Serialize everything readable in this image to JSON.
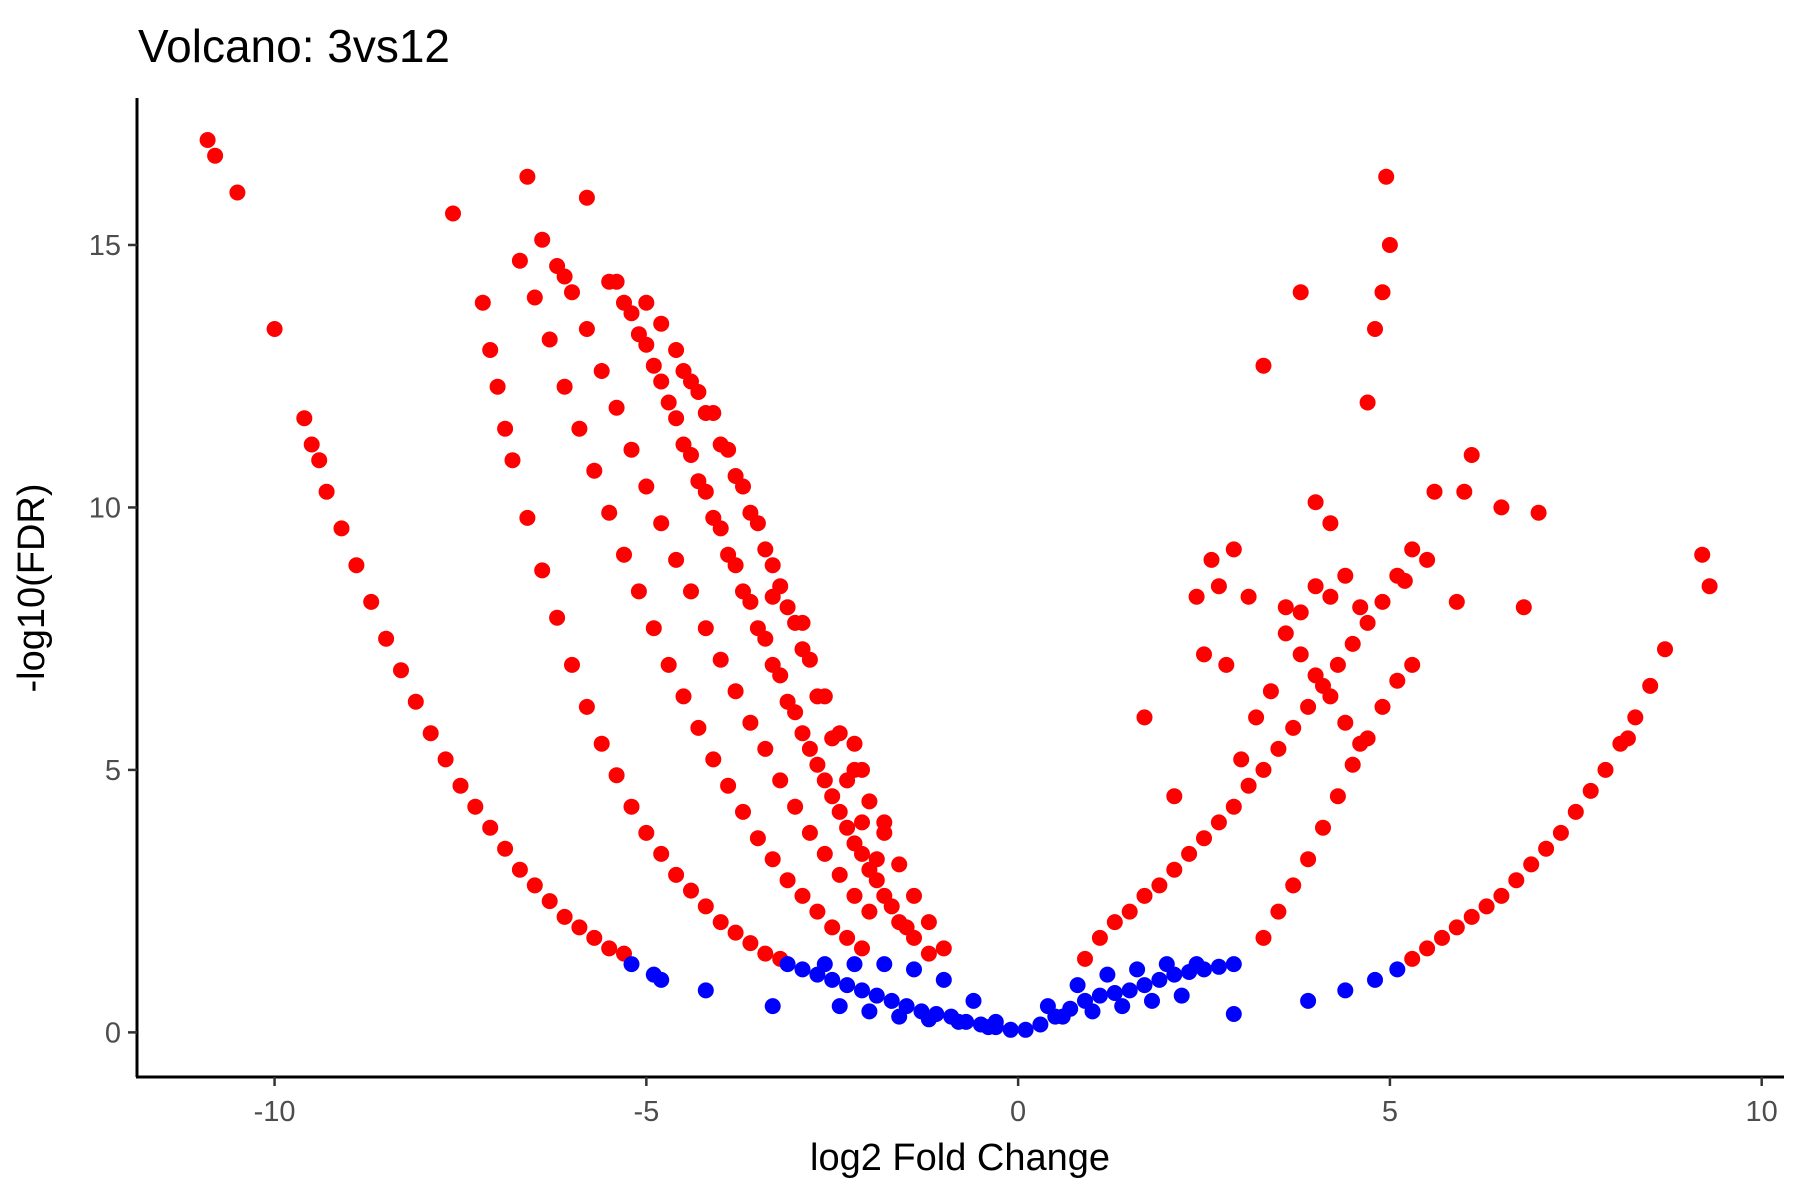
{
  "chart_data": {
    "type": "scatter",
    "title": "Volcano: 3vs12",
    "xlabel": "log2 Fold Change",
    "ylabel": "-log10(FDR)",
    "xlim": [
      -11.85,
      10.3
    ],
    "ylim": [
      -0.85,
      17.8
    ],
    "x_ticks": [
      -10,
      -5,
      0,
      5,
      10
    ],
    "x_tick_labels": [
      "-10",
      "-5",
      "0",
      "5",
      "10"
    ],
    "y_ticks": [
      0,
      5,
      10,
      15
    ],
    "y_tick_labels": [
      "0",
      "5",
      "10",
      "15"
    ],
    "grid": false,
    "legend": "none",
    "colors": {
      "significant": "#ff0000",
      "not_significant": "#0000ff"
    },
    "significance_threshold_neglog10_fdr": 1.3,
    "series": [
      {
        "color": "#ff0000",
        "x": [
          -10.9,
          -10.8,
          -10.5,
          -10.0,
          -9.6,
          -9.5,
          -9.4,
          -9.3,
          -9.1,
          -8.9,
          -8.7,
          -8.5,
          -8.3,
          -8.1,
          -7.9,
          -7.7,
          -7.5,
          -7.3,
          -7.1,
          -6.9,
          -6.7,
          -6.5,
          -6.3,
          -6.1,
          -5.9,
          -5.7,
          -5.5,
          -5.3,
          -7.6,
          -7.2,
          -7.1,
          -7.0,
          -6.9,
          -6.8,
          -6.6,
          -6.4,
          -6.2,
          -6.0,
          -5.8,
          -5.6,
          -5.4,
          -5.2,
          -5.0,
          -4.8,
          -4.6,
          -4.4,
          -4.2,
          -4.0,
          -3.8,
          -3.6,
          -3.4,
          -3.2,
          -6.7,
          -6.5,
          -6.3,
          -6.1,
          -5.9,
          -5.7,
          -5.5,
          -5.3,
          -5.1,
          -4.9,
          -4.7,
          -4.5,
          -4.3,
          -4.1,
          -3.9,
          -3.7,
          -3.5,
          -3.3,
          -3.1,
          -2.9,
          -2.7,
          -2.5,
          -2.3,
          -2.1,
          -6.6,
          -6.4,
          -6.2,
          -6.1,
          -6.0,
          -5.8,
          -5.6,
          -5.4,
          -5.2,
          -5.0,
          -4.8,
          -4.6,
          -4.4,
          -4.2,
          -4.0,
          -3.8,
          -3.6,
          -3.4,
          -3.2,
          -3.0,
          -2.8,
          -2.6,
          -2.4,
          -2.2,
          -2.0,
          -5.8,
          -5.5,
          -5.3,
          -5.1,
          -4.9,
          -4.7,
          -4.5,
          -4.3,
          -4.1,
          -3.9,
          -3.7,
          -3.5,
          -3.3,
          -3.1,
          -2.9,
          -2.7,
          -2.5,
          -2.3,
          -2.1,
          -1.9,
          -1.7,
          -1.5,
          -5.4,
          -5.2,
          -5.0,
          -4.8,
          -4.6,
          -4.4,
          -4.2,
          -4.0,
          -3.8,
          -3.6,
          -3.4,
          -3.2,
          -3.0,
          -2.8,
          -2.6,
          -2.4,
          -2.2,
          -2.0,
          -1.8,
          -1.6,
          -1.4,
          -1.2,
          -5.0,
          -4.8,
          -4.6,
          -4.4,
          -4.2,
          -4.0,
          -3.8,
          -3.6,
          -3.4,
          -3.2,
          -3.0,
          -2.8,
          -2.6,
          -2.4,
          -2.2,
          -2.0,
          -1.8,
          -1.6,
          -1.4,
          -1.2,
          -1.0,
          -4.5,
          -4.3,
          -4.1,
          -3.9,
          -3.7,
          -3.5,
          -3.3,
          -3.1,
          -2.9,
          -2.7,
          -2.5,
          -2.3,
          -2.1,
          -1.9,
          -3.3,
          -2.9,
          -2.2,
          -2.1,
          -1.8,
          0.9,
          1.1,
          1.3,
          1.5,
          1.7,
          1.9,
          2.1,
          2.3,
          2.5,
          2.7,
          2.9,
          3.1,
          3.3,
          3.5,
          3.7,
          3.9,
          4.1,
          4.3,
          4.5,
          4.7,
          4.9,
          5.1,
          5.3,
          3.3,
          3.5,
          3.7,
          3.9,
          4.1,
          4.3,
          4.5,
          4.7,
          4.9,
          5.1,
          5.3,
          1.7,
          2.1,
          2.4,
          2.6,
          2.7,
          2.8,
          3.0,
          3.2,
          3.4,
          3.6,
          3.8,
          4.0,
          4.2,
          4.4,
          4.6,
          2.5,
          2.9,
          3.1,
          3.6,
          3.8,
          4.0,
          4.2,
          4.4,
          4.6,
          5.2,
          5.5,
          5.9,
          3.3,
          3.8,
          4.0,
          4.2,
          4.7,
          4.8,
          4.9,
          4.95,
          5.0,
          5.6,
          6.0,
          6.1,
          6.5,
          7.0,
          6.8,
          5.3,
          5.5,
          5.7,
          5.9,
          6.1,
          6.3,
          6.5,
          6.7,
          6.9,
          7.1,
          7.3,
          7.5,
          7.7,
          7.9,
          8.1,
          8.3,
          8.5,
          8.7,
          9.2,
          9.3,
          8.2
        ],
        "y": [
          17.0,
          16.7,
          16.0,
          13.4,
          11.7,
          11.2,
          10.9,
          10.3,
          9.6,
          8.9,
          8.2,
          7.5,
          6.9,
          6.3,
          5.7,
          5.2,
          4.7,
          4.3,
          3.9,
          3.5,
          3.1,
          2.8,
          2.5,
          2.2,
          2.0,
          1.8,
          1.6,
          1.5,
          15.6,
          13.9,
          13.0,
          12.3,
          11.5,
          10.9,
          9.8,
          8.8,
          7.9,
          7.0,
          6.2,
          5.5,
          4.9,
          4.3,
          3.8,
          3.4,
          3.0,
          2.7,
          2.4,
          2.1,
          1.9,
          1.7,
          1.5,
          1.4,
          14.7,
          14.0,
          13.2,
          12.3,
          11.5,
          10.7,
          9.9,
          9.1,
          8.4,
          7.7,
          7.0,
          6.4,
          5.8,
          5.2,
          4.7,
          4.2,
          3.7,
          3.3,
          2.9,
          2.6,
          2.3,
          2.0,
          1.8,
          1.6,
          16.3,
          15.1,
          14.6,
          14.4,
          14.1,
          13.4,
          12.6,
          11.9,
          11.1,
          10.4,
          9.7,
          9.0,
          8.4,
          7.7,
          7.1,
          6.5,
          5.9,
          5.4,
          4.8,
          4.3,
          3.8,
          3.4,
          3.0,
          2.6,
          2.3,
          15.9,
          14.3,
          13.9,
          13.3,
          12.7,
          12.0,
          11.2,
          10.5,
          9.8,
          9.1,
          8.4,
          7.7,
          7.0,
          6.3,
          5.7,
          5.1,
          4.5,
          3.9,
          3.4,
          2.9,
          2.4,
          2.0,
          14.3,
          13.7,
          13.1,
          12.4,
          11.7,
          11.0,
          10.3,
          9.6,
          8.9,
          8.2,
          7.5,
          6.8,
          6.1,
          5.4,
          4.8,
          4.2,
          3.6,
          3.1,
          2.6,
          2.1,
          1.8,
          1.5,
          13.9,
          13.5,
          13.0,
          12.4,
          11.8,
          11.2,
          10.6,
          9.9,
          9.2,
          8.5,
          7.8,
          7.1,
          6.4,
          5.7,
          5.0,
          4.4,
          3.8,
          3.2,
          2.6,
          2.1,
          1.6,
          12.6,
          12.2,
          11.8,
          11.1,
          10.4,
          9.7,
          8.9,
          8.1,
          7.3,
          6.4,
          5.6,
          4.8,
          4.0,
          3.3,
          8.3,
          7.8,
          5.5,
          5.0,
          4.0,
          1.4,
          1.8,
          2.1,
          2.3,
          2.6,
          2.8,
          3.1,
          3.4,
          3.7,
          4.0,
          4.3,
          4.7,
          5.0,
          5.4,
          5.8,
          6.2,
          6.6,
          7.0,
          7.4,
          7.8,
          8.2,
          8.7,
          9.2,
          1.8,
          2.3,
          2.8,
          3.3,
          3.9,
          4.5,
          5.1,
          5.6,
          6.2,
          6.7,
          7.0,
          6.0,
          4.5,
          8.3,
          9.0,
          8.5,
          7.0,
          5.2,
          6.0,
          6.5,
          7.6,
          7.2,
          6.8,
          6.4,
          5.9,
          5.5,
          7.2,
          9.2,
          8.3,
          8.1,
          8.0,
          8.5,
          8.3,
          8.7,
          8.1,
          8.6,
          9.0,
          8.2,
          12.7,
          14.1,
          10.1,
          9.7,
          12.0,
          13.4,
          14.1,
          16.3,
          15.0,
          10.3,
          10.3,
          11.0,
          10.0,
          9.9,
          8.1,
          1.4,
          1.6,
          1.8,
          2.0,
          2.2,
          2.4,
          2.6,
          2.9,
          3.2,
          3.5,
          3.8,
          4.2,
          4.6,
          5.0,
          5.5,
          6.0,
          6.6,
          7.3,
          9.1,
          8.5,
          5.6
        ]
      },
      {
        "color": "#0000ff",
        "x": [
          -5.2,
          -4.9,
          -4.8,
          -4.2,
          -3.3,
          -3.1,
          -2.9,
          -2.7,
          -2.5,
          -2.3,
          -2.1,
          -1.9,
          -1.7,
          -1.5,
          -1.3,
          -1.1,
          -0.9,
          -0.7,
          -0.5,
          -0.3,
          -0.1,
          -2.6,
          -2.2,
          -1.8,
          -1.4,
          -1.0,
          -0.6,
          -0.3,
          -2.4,
          -2.0,
          -1.6,
          -1.2,
          -0.8,
          -0.4,
          0.1,
          0.3,
          0.5,
          0.7,
          0.9,
          1.1,
          1.3,
          1.5,
          1.7,
          1.9,
          2.1,
          2.3,
          2.5,
          2.7,
          2.9,
          0.4,
          0.8,
          1.2,
          1.6,
          2.0,
          2.4,
          0.6,
          1.0,
          1.4,
          1.8,
          2.2,
          2.9,
          3.9,
          4.4,
          4.8,
          5.1
        ],
        "y": [
          1.3,
          1.1,
          1.0,
          0.8,
          0.5,
          1.3,
          1.2,
          1.1,
          1.0,
          0.9,
          0.8,
          0.7,
          0.6,
          0.5,
          0.4,
          0.35,
          0.3,
          0.2,
          0.15,
          0.1,
          0.05,
          1.3,
          1.3,
          1.3,
          1.2,
          1.0,
          0.6,
          0.2,
          0.5,
          0.4,
          0.3,
          0.25,
          0.2,
          0.1,
          0.05,
          0.15,
          0.3,
          0.45,
          0.6,
          0.7,
          0.75,
          0.8,
          0.9,
          1.0,
          1.1,
          1.15,
          1.2,
          1.25,
          1.3,
          0.5,
          0.9,
          1.1,
          1.2,
          1.3,
          1.3,
          0.3,
          0.4,
          0.5,
          0.6,
          0.7,
          0.35,
          0.6,
          0.8,
          1.0,
          1.2
        ]
      }
    ]
  }
}
